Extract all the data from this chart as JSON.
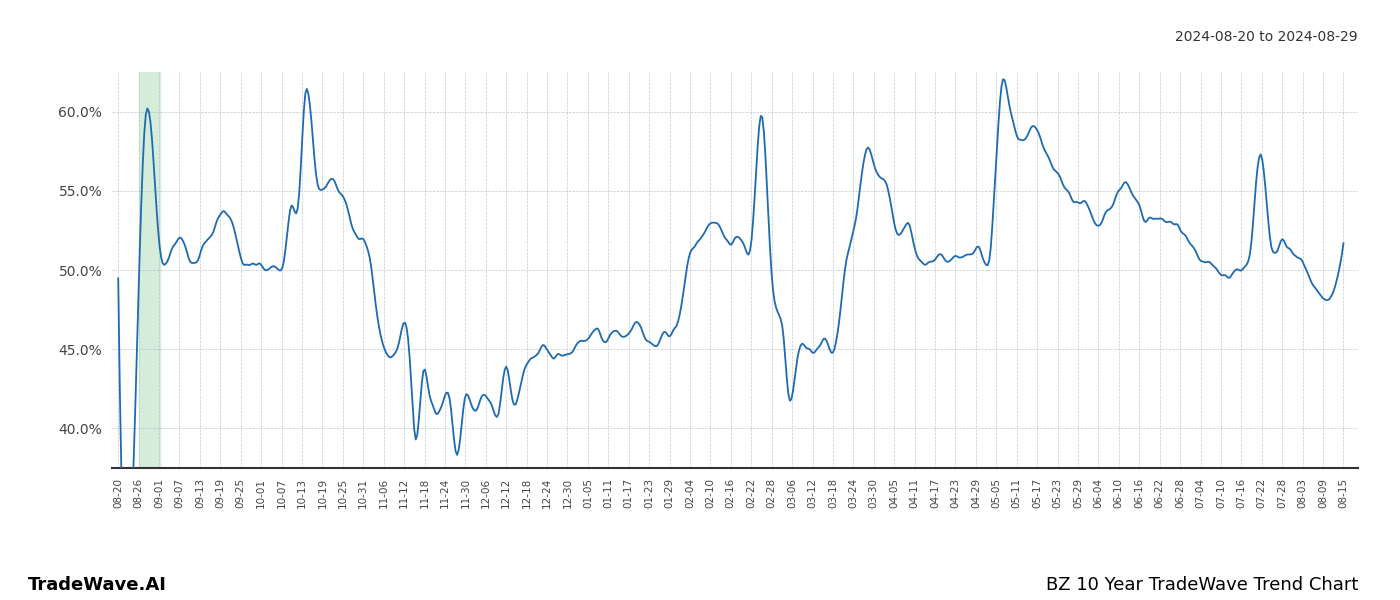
{
  "title_top_right": "2024-08-20 to 2024-08-29",
  "title_bottom_right": "BZ 10 Year TradeWave Trend Chart",
  "title_bottom_left": "TradeWave.AI",
  "highlight_color": "#d4edda",
  "line_color": "#1f6bb0",
  "background_color": "#ffffff",
  "grid_color": "#b0b8c8",
  "ylim": [
    0.375,
    0.625
  ],
  "yticks": [
    0.4,
    0.45,
    0.5,
    0.55,
    0.6
  ],
  "x_labels": [
    "08-20",
    "08-26",
    "09-01",
    "09-07",
    "09-13",
    "09-19",
    "09-25",
    "10-01",
    "10-07",
    "10-13",
    "10-19",
    "10-25",
    "10-31",
    "11-06",
    "11-12",
    "11-18",
    "11-24",
    "11-30",
    "12-06",
    "12-12",
    "12-18",
    "12-24",
    "12-30",
    "01-05",
    "01-11",
    "01-17",
    "01-23",
    "01-29",
    "02-04",
    "02-10",
    "02-16",
    "02-22",
    "02-28",
    "03-06",
    "03-12",
    "03-18",
    "03-24",
    "03-30",
    "04-05",
    "04-11",
    "04-17",
    "04-23",
    "04-29",
    "05-05",
    "05-11",
    "05-17",
    "05-23",
    "05-29",
    "06-04",
    "06-10",
    "06-16",
    "06-22",
    "06-28",
    "07-04",
    "07-10",
    "07-16",
    "07-22",
    "07-28",
    "08-03",
    "08-09",
    "08-15"
  ],
  "control_points": [
    [
      0,
      0.495
    ],
    [
      1,
      0.495
    ],
    [
      1.3,
      0.592
    ],
    [
      2,
      0.515
    ],
    [
      2.5,
      0.51
    ],
    [
      3,
      0.52
    ],
    [
      3.5,
      0.505
    ],
    [
      4,
      0.51
    ],
    [
      4.5,
      0.525
    ],
    [
      5,
      0.535
    ],
    [
      5.5,
      0.53
    ],
    [
      6,
      0.505
    ],
    [
      6.5,
      0.505
    ],
    [
      7,
      0.5
    ],
    [
      7.5,
      0.505
    ],
    [
      8,
      0.51
    ],
    [
      8.3,
      0.54
    ],
    [
      8.7,
      0.545
    ],
    [
      9,
      0.61
    ],
    [
      9.5,
      0.565
    ],
    [
      10,
      0.555
    ],
    [
      10.5,
      0.555
    ],
    [
      11,
      0.54
    ],
    [
      11.5,
      0.52
    ],
    [
      12,
      0.515
    ],
    [
      12.5,
      0.47
    ],
    [
      13,
      0.445
    ],
    [
      13.5,
      0.455
    ],
    [
      14,
      0.45
    ],
    [
      14.3,
      0.395
    ],
    [
      14.7,
      0.435
    ],
    [
      15,
      0.42
    ],
    [
      15.5,
      0.415
    ],
    [
      16,
      0.415
    ],
    [
      16.3,
      0.385
    ],
    [
      16.7,
      0.42
    ],
    [
      17,
      0.415
    ],
    [
      17.5,
      0.42
    ],
    [
      18,
      0.415
    ],
    [
      18.3,
      0.41
    ],
    [
      18.7,
      0.44
    ],
    [
      19,
      0.415
    ],
    [
      19.5,
      0.435
    ],
    [
      20,
      0.445
    ],
    [
      20.5,
      0.45
    ],
    [
      21,
      0.445
    ],
    [
      21.5,
      0.445
    ],
    [
      22,
      0.45
    ],
    [
      22.5,
      0.455
    ],
    [
      23,
      0.46
    ],
    [
      23.5,
      0.455
    ],
    [
      24,
      0.46
    ],
    [
      24.5,
      0.46
    ],
    [
      25,
      0.465
    ],
    [
      25.5,
      0.455
    ],
    [
      26,
      0.455
    ],
    [
      26.5,
      0.46
    ],
    [
      27,
      0.47
    ],
    [
      27.5,
      0.51
    ],
    [
      28,
      0.52
    ],
    [
      28.5,
      0.53
    ],
    [
      29,
      0.525
    ],
    [
      29.5,
      0.515
    ],
    [
      30,
      0.52
    ],
    [
      30.5,
      0.52
    ],
    [
      31,
      0.595
    ],
    [
      31.5,
      0.49
    ],
    [
      32,
      0.465
    ],
    [
      32.3,
      0.42
    ],
    [
      32.7,
      0.445
    ],
    [
      33,
      0.455
    ],
    [
      33.5,
      0.45
    ],
    [
      34,
      0.455
    ],
    [
      34.5,
      0.45
    ],
    [
      35,
      0.5
    ],
    [
      35.5,
      0.53
    ],
    [
      36,
      0.575
    ],
    [
      36.5,
      0.565
    ],
    [
      37,
      0.555
    ],
    [
      37.5,
      0.525
    ],
    [
      38,
      0.53
    ],
    [
      38.5,
      0.51
    ],
    [
      39,
      0.505
    ],
    [
      39.5,
      0.51
    ],
    [
      40,
      0.505
    ],
    [
      40.5,
      0.51
    ],
    [
      41,
      0.51
    ],
    [
      41.5,
      0.515
    ],
    [
      42,
      0.51
    ],
    [
      42.5,
      0.61
    ],
    [
      43,
      0.6
    ],
    [
      43.5,
      0.58
    ],
    [
      44,
      0.59
    ],
    [
      44.5,
      0.58
    ],
    [
      45,
      0.565
    ],
    [
      45.5,
      0.555
    ],
    [
      46,
      0.54
    ],
    [
      46.5,
      0.545
    ],
    [
      47,
      0.53
    ],
    [
      47.5,
      0.535
    ],
    [
      48,
      0.54
    ],
    [
      48.5,
      0.555
    ],
    [
      49,
      0.545
    ],
    [
      49.5,
      0.53
    ],
    [
      50,
      0.535
    ],
    [
      50.5,
      0.53
    ],
    [
      51,
      0.525
    ],
    [
      51.5,
      0.52
    ],
    [
      52,
      0.51
    ],
    [
      52.5,
      0.505
    ],
    [
      53,
      0.5
    ],
    [
      53.5,
      0.495
    ],
    [
      54,
      0.5
    ],
    [
      54.5,
      0.51
    ],
    [
      55,
      0.57
    ],
    [
      55.5,
      0.52
    ],
    [
      56,
      0.515
    ],
    [
      56.5,
      0.51
    ],
    [
      57,
      0.505
    ],
    [
      57.5,
      0.49
    ],
    [
      58,
      0.48
    ],
    [
      59,
      0.52
    ]
  ]
}
